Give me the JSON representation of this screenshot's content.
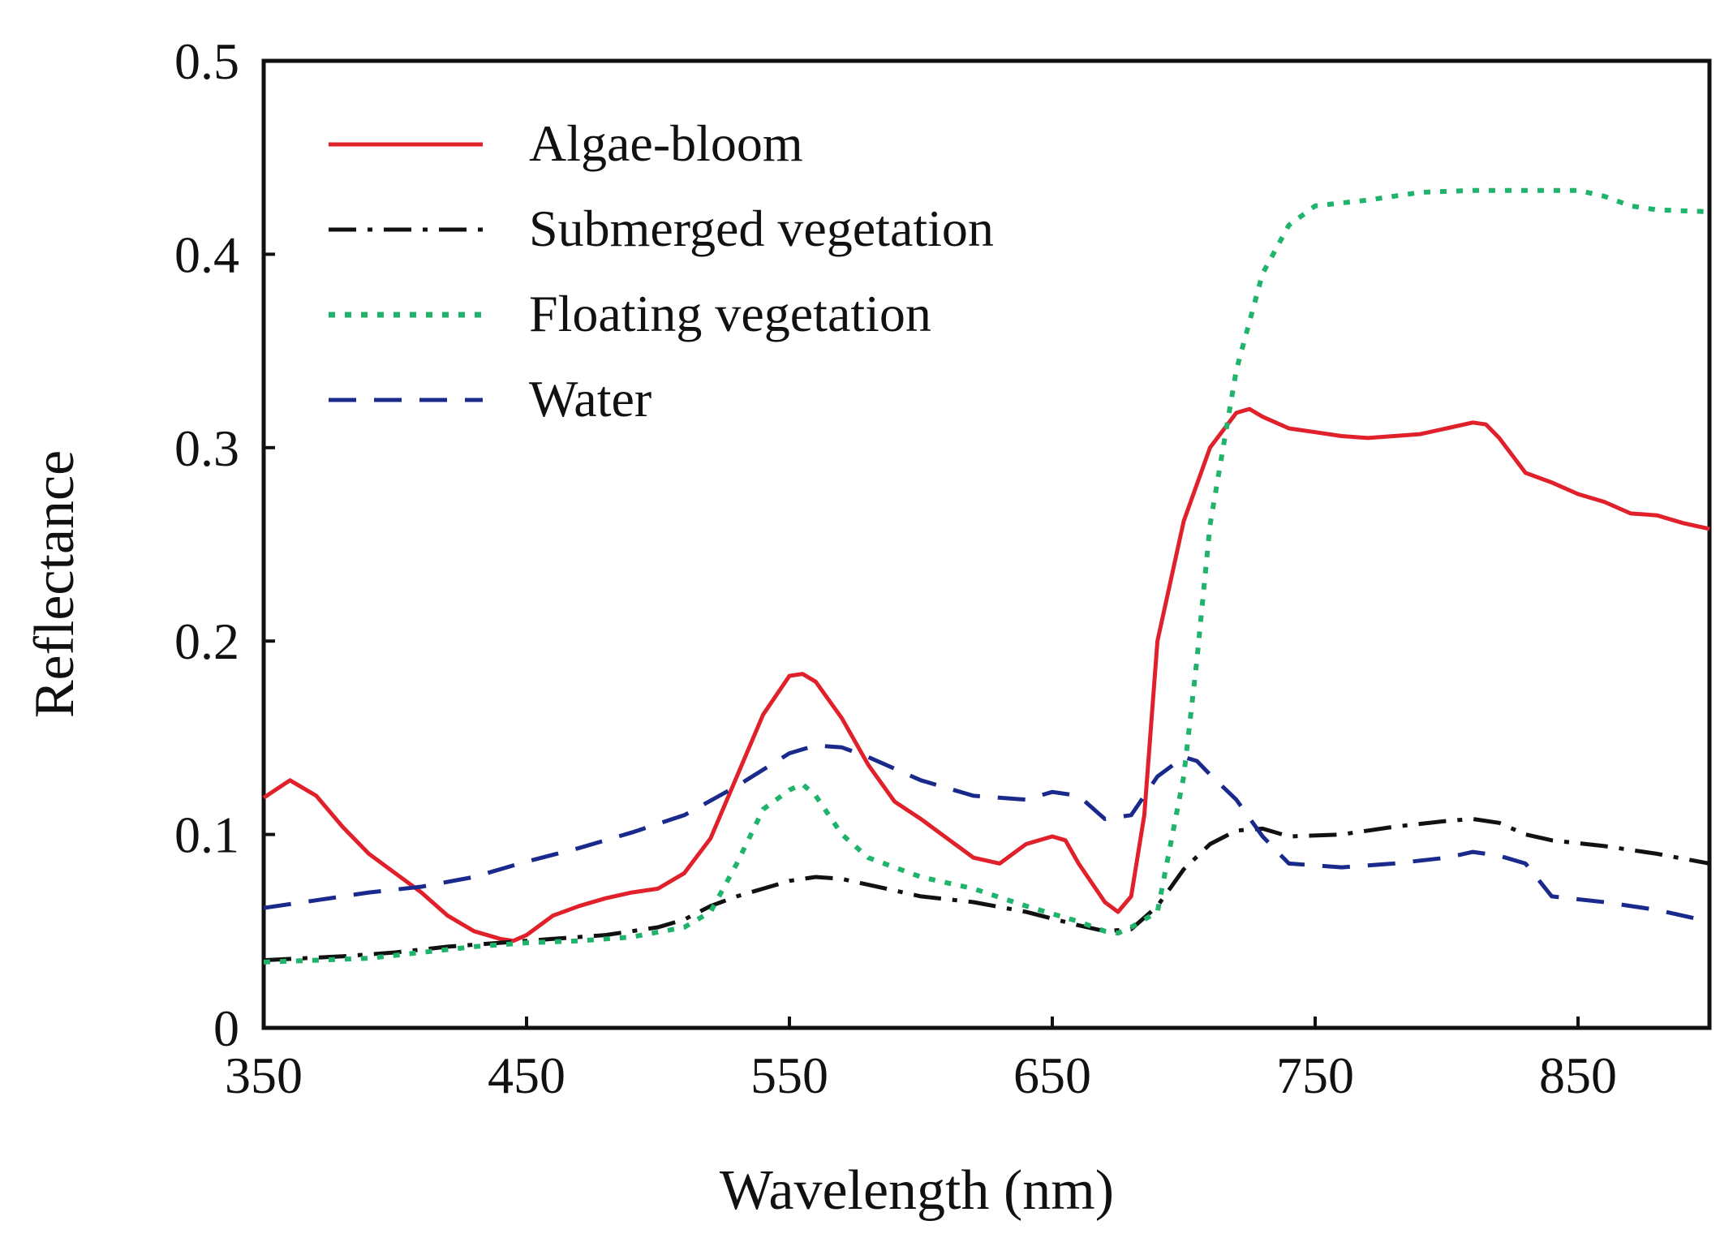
{
  "chart_data": {
    "type": "line",
    "title": "",
    "xlabel": "Wavelength (nm)",
    "ylabel": "Reflectance",
    "xlim": [
      350,
      900
    ],
    "ylim": [
      0,
      0.5
    ],
    "xticks": [
      350,
      450,
      550,
      650,
      750,
      850
    ],
    "xtick_labels": [
      "350",
      "450",
      "550",
      "650",
      "750",
      "850"
    ],
    "yticks": [
      0,
      0.1,
      0.2,
      0.3,
      0.4,
      0.5
    ],
    "ytick_labels": [
      "0",
      "0.1",
      "0.2",
      "0.3",
      "0.4",
      "0.5"
    ],
    "grid": false,
    "legend_position": "top-left",
    "series": [
      {
        "name": "Algae-bloom",
        "color": "#e0202a",
        "dash": "solid",
        "x": [
          350,
          360,
          370,
          380,
          390,
          400,
          410,
          420,
          430,
          440,
          445,
          450,
          460,
          470,
          480,
          490,
          500,
          510,
          520,
          530,
          540,
          550,
          555,
          560,
          570,
          580,
          590,
          600,
          610,
          620,
          630,
          640,
          650,
          655,
          660,
          670,
          675,
          680,
          685,
          690,
          700,
          710,
          720,
          725,
          730,
          740,
          750,
          760,
          770,
          780,
          790,
          800,
          810,
          815,
          820,
          830,
          840,
          850,
          860,
          870,
          880,
          890,
          900
        ],
        "y": [
          0.119,
          0.128,
          0.12,
          0.104,
          0.09,
          0.08,
          0.07,
          0.058,
          0.05,
          0.046,
          0.045,
          0.048,
          0.058,
          0.063,
          0.067,
          0.07,
          0.072,
          0.08,
          0.098,
          0.13,
          0.162,
          0.182,
          0.183,
          0.179,
          0.16,
          0.136,
          0.117,
          0.108,
          0.098,
          0.088,
          0.085,
          0.095,
          0.099,
          0.097,
          0.085,
          0.065,
          0.06,
          0.068,
          0.11,
          0.2,
          0.262,
          0.3,
          0.318,
          0.32,
          0.316,
          0.31,
          0.308,
          0.306,
          0.305,
          0.306,
          0.307,
          0.31,
          0.313,
          0.312,
          0.305,
          0.287,
          0.282,
          0.276,
          0.272,
          0.266,
          0.265,
          0.261,
          0.258
        ]
      },
      {
        "name": "Submerged vegetation",
        "color": "#111111",
        "dash": "dashdot",
        "x": [
          350,
          380,
          400,
          420,
          440,
          460,
          480,
          500,
          510,
          520,
          530,
          540,
          550,
          560,
          570,
          580,
          590,
          600,
          620,
          640,
          660,
          670,
          680,
          690,
          700,
          710,
          720,
          730,
          740,
          760,
          780,
          800,
          810,
          820,
          830,
          840,
          860,
          880,
          900
        ],
        "y": [
          0.035,
          0.037,
          0.039,
          0.042,
          0.044,
          0.046,
          0.048,
          0.052,
          0.056,
          0.063,
          0.068,
          0.072,
          0.076,
          0.078,
          0.077,
          0.074,
          0.071,
          0.068,
          0.065,
          0.06,
          0.053,
          0.05,
          0.051,
          0.063,
          0.082,
          0.095,
          0.102,
          0.103,
          0.099,
          0.1,
          0.104,
          0.107,
          0.108,
          0.106,
          0.1,
          0.097,
          0.094,
          0.09,
          0.085
        ]
      },
      {
        "name": "Floating vegetation",
        "color": "#1fb36b",
        "dash": "dotted",
        "x": [
          350,
          370,
          390,
          410,
          430,
          450,
          470,
          490,
          510,
          520,
          530,
          540,
          550,
          555,
          560,
          570,
          580,
          600,
          620,
          640,
          660,
          670,
          675,
          680,
          690,
          700,
          705,
          710,
          715,
          720,
          730,
          740,
          750,
          770,
          790,
          810,
          830,
          850,
          860,
          870,
          880,
          900
        ],
        "y": [
          0.034,
          0.035,
          0.036,
          0.039,
          0.042,
          0.044,
          0.045,
          0.047,
          0.052,
          0.06,
          0.085,
          0.113,
          0.123,
          0.126,
          0.12,
          0.1,
          0.088,
          0.078,
          0.072,
          0.063,
          0.055,
          0.05,
          0.049,
          0.052,
          0.06,
          0.13,
          0.19,
          0.26,
          0.3,
          0.34,
          0.39,
          0.415,
          0.425,
          0.428,
          0.432,
          0.433,
          0.433,
          0.433,
          0.43,
          0.425,
          0.423,
          0.422
        ]
      },
      {
        "name": "Water",
        "color": "#1a2a8c",
        "dash": "dashed",
        "x": [
          350,
          370,
          390,
          410,
          430,
          450,
          470,
          490,
          510,
          530,
          550,
          560,
          570,
          580,
          590,
          600,
          620,
          640,
          650,
          660,
          670,
          680,
          690,
          700,
          705,
          710,
          720,
          730,
          740,
          760,
          780,
          800,
          810,
          820,
          830,
          840,
          860,
          880,
          900
        ],
        "y": [
          0.062,
          0.066,
          0.07,
          0.073,
          0.078,
          0.086,
          0.093,
          0.101,
          0.11,
          0.125,
          0.142,
          0.146,
          0.145,
          0.14,
          0.134,
          0.128,
          0.12,
          0.118,
          0.122,
          0.12,
          0.108,
          0.11,
          0.13,
          0.14,
          0.138,
          0.131,
          0.118,
          0.099,
          0.085,
          0.083,
          0.085,
          0.088,
          0.091,
          0.089,
          0.085,
          0.068,
          0.065,
          0.061,
          0.055
        ]
      }
    ]
  }
}
